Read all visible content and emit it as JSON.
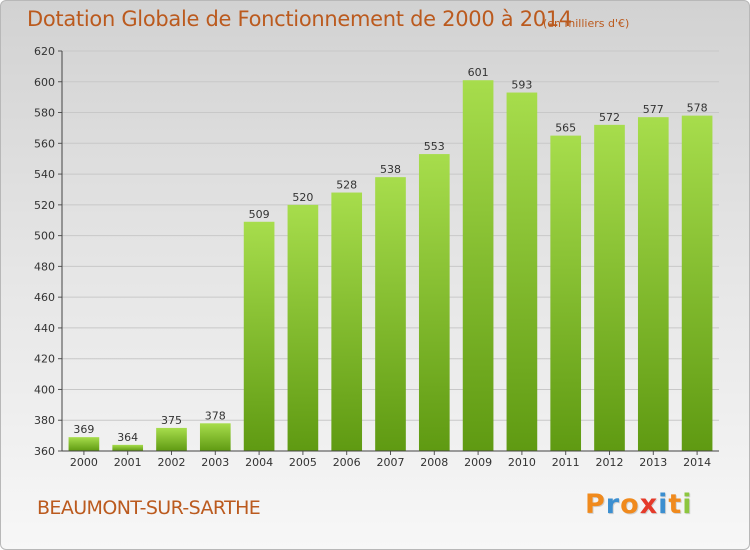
{
  "header": {
    "title": "Dotation Globale de Fonctionnement de 2000 à 2014",
    "unit_note": "(en milliers d'€)"
  },
  "footer": {
    "commune": "BEAUMONT-SUR-SARTHE",
    "logo_letters": [
      "P",
      "r",
      "o",
      "x",
      "i",
      "t",
      "i"
    ],
    "logo_colors": [
      "#f08a1d",
      "#3c8fd0",
      "#f08a1d",
      "#e53a2a",
      "#3c8fd0",
      "#f08a1d",
      "#8dc63f"
    ]
  },
  "colors": {
    "bar_top": "#a7dd4c",
    "bar_bottom": "#5f9a12",
    "grid": "#c8c8c8",
    "accent": "#bb5a1e"
  },
  "chart_data": {
    "type": "bar",
    "title": "Dotation Globale de Fonctionnement de 2000 à 2014",
    "subtitle": "(en milliers d'€)",
    "categories": [
      "2000",
      "2001",
      "2002",
      "2003",
      "2004",
      "2005",
      "2006",
      "2007",
      "2008",
      "2009",
      "2010",
      "2011",
      "2012",
      "2013",
      "2014"
    ],
    "values": [
      369,
      364,
      375,
      378,
      509,
      520,
      528,
      538,
      553,
      601,
      593,
      565,
      572,
      577,
      578
    ],
    "xlabel": "",
    "ylabel": "",
    "ylim": [
      360,
      620
    ],
    "yticks": [
      360,
      380,
      400,
      420,
      440,
      460,
      480,
      500,
      520,
      540,
      560,
      580,
      600,
      620
    ],
    "grid": true,
    "legend": "none"
  }
}
